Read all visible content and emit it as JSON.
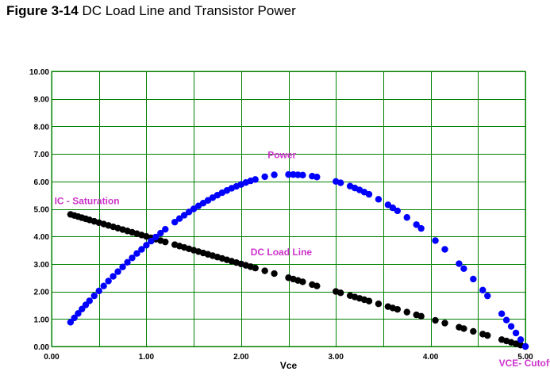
{
  "figure": {
    "number": "Figure 3-14",
    "caption": "DC Load Line and Transistor Power"
  },
  "chart_data": {
    "type": "scatter",
    "xlabel": "Vce",
    "ylabel": "",
    "xlim": [
      0,
      5
    ],
    "ylim": [
      0,
      10
    ],
    "x_ticks": [
      "0.00",
      "1.00",
      "2.00",
      "3.00",
      "4.00",
      "5.00"
    ],
    "y_ticks": [
      "0.00",
      "1.00",
      "2.00",
      "3.00",
      "4.00",
      "5.00",
      "6.00",
      "7.00",
      "8.00",
      "9.00",
      "10.00"
    ],
    "grid": true,
    "colors": {
      "grid": "#008000",
      "power": "#0000ff",
      "load_line": "#000000",
      "annotation": "#cc33cc"
    },
    "series": [
      {
        "name": "DC Load Line",
        "color": "#000000",
        "x": [
          0.2,
          0.24,
          0.28,
          0.32,
          0.36,
          0.4,
          0.45,
          0.5,
          0.55,
          0.6,
          0.65,
          0.7,
          0.75,
          0.8,
          0.85,
          0.9,
          0.95,
          1.0,
          1.05,
          1.1,
          1.15,
          1.2,
          1.3,
          1.35,
          1.4,
          1.45,
          1.5,
          1.55,
          1.6,
          1.65,
          1.7,
          1.75,
          1.8,
          1.85,
          1.9,
          1.95,
          2.0,
          2.05,
          2.1,
          2.15,
          2.25,
          2.35,
          2.5,
          2.55,
          2.6,
          2.65,
          2.75,
          2.8,
          3.0,
          3.05,
          3.15,
          3.2,
          3.25,
          3.3,
          3.35,
          3.45,
          3.55,
          3.6,
          3.65,
          3.75,
          3.85,
          3.9,
          4.05,
          4.15,
          4.3,
          4.35,
          4.45,
          4.55,
          4.6,
          4.75,
          4.8,
          4.85,
          4.9,
          4.95,
          5.0
        ],
        "y": [
          4.8,
          4.76,
          4.72,
          4.68,
          4.64,
          4.6,
          4.55,
          4.5,
          4.45,
          4.4,
          4.35,
          4.3,
          4.25,
          4.2,
          4.15,
          4.1,
          4.05,
          4.0,
          3.95,
          3.9,
          3.85,
          3.8,
          3.7,
          3.65,
          3.6,
          3.55,
          3.5,
          3.45,
          3.4,
          3.35,
          3.3,
          3.25,
          3.2,
          3.15,
          3.1,
          3.05,
          3.0,
          2.95,
          2.9,
          2.85,
          2.75,
          2.65,
          2.5,
          2.45,
          2.4,
          2.35,
          2.25,
          2.2,
          2.0,
          1.95,
          1.85,
          1.8,
          1.75,
          1.7,
          1.65,
          1.55,
          1.45,
          1.4,
          1.35,
          1.25,
          1.15,
          1.1,
          0.95,
          0.85,
          0.7,
          0.65,
          0.55,
          0.45,
          0.4,
          0.25,
          0.2,
          0.15,
          0.1,
          0.05,
          0.0
        ]
      },
      {
        "name": "Power",
        "color": "#0000ff",
        "x": [
          0.2,
          0.24,
          0.28,
          0.32,
          0.36,
          0.4,
          0.45,
          0.5,
          0.55,
          0.6,
          0.65,
          0.7,
          0.75,
          0.8,
          0.85,
          0.9,
          0.95,
          1.0,
          1.05,
          1.1,
          1.15,
          1.2,
          1.3,
          1.35,
          1.4,
          1.45,
          1.5,
          1.55,
          1.6,
          1.65,
          1.7,
          1.75,
          1.8,
          1.85,
          1.9,
          1.95,
          2.0,
          2.05,
          2.1,
          2.15,
          2.25,
          2.35,
          2.5,
          2.55,
          2.6,
          2.65,
          2.75,
          2.8,
          3.0,
          3.05,
          3.15,
          3.2,
          3.25,
          3.3,
          3.35,
          3.45,
          3.55,
          3.6,
          3.65,
          3.75,
          3.85,
          3.9,
          4.05,
          4.15,
          4.3,
          4.35,
          4.45,
          4.55,
          4.6,
          4.75,
          4.8,
          4.85,
          4.9,
          4.95,
          5.0
        ],
        "y": [
          0.88,
          1.04,
          1.2,
          1.36,
          1.51,
          1.66,
          1.84,
          2.02,
          2.2,
          2.38,
          2.55,
          2.72,
          2.89,
          3.06,
          3.22,
          3.38,
          3.53,
          3.68,
          3.83,
          3.98,
          4.12,
          4.26,
          4.52,
          4.65,
          4.77,
          4.89,
          5.0,
          5.11,
          5.21,
          5.31,
          5.41,
          5.5,
          5.59,
          5.67,
          5.75,
          5.82,
          5.89,
          5.96,
          6.02,
          6.07,
          6.17,
          6.24,
          6.25,
          6.25,
          6.24,
          6.23,
          6.19,
          6.16,
          6.0,
          5.95,
          5.83,
          5.76,
          5.69,
          5.61,
          5.53,
          5.35,
          5.15,
          5.04,
          4.93,
          4.69,
          4.43,
          4.29,
          3.85,
          3.53,
          3.01,
          2.83,
          2.45,
          2.05,
          1.84,
          1.19,
          0.96,
          0.73,
          0.49,
          0.25,
          0.0
        ]
      }
    ],
    "annotations": [
      {
        "text": "IC - Saturation",
        "x": 0.03,
        "y": 5.18
      },
      {
        "text": "Power",
        "x": 2.28,
        "y": 6.84
      },
      {
        "text": "DC Load Line",
        "x": 2.1,
        "y": 3.32
      },
      {
        "text": "VCE- Cutoff",
        "x": 4.72,
        "y": -0.72
      }
    ]
  }
}
